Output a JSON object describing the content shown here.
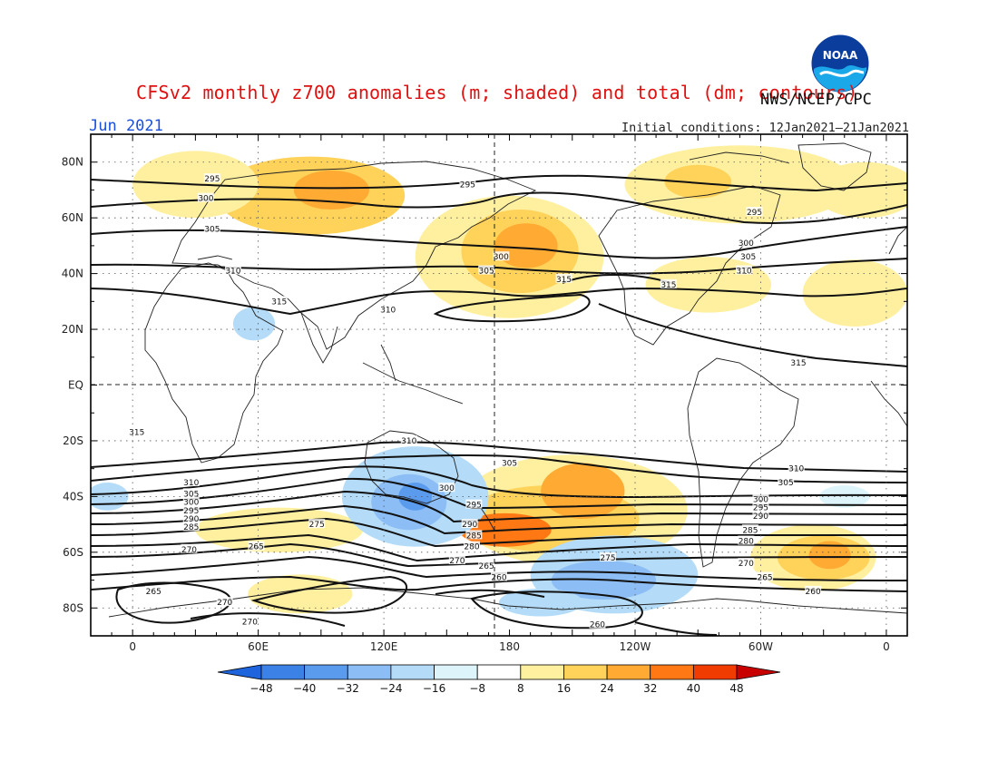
{
  "header": {
    "title": "CFSv2 monthly z700 anomalies (m; shaded) and total (dm; contours)",
    "organization": "NWS/NCEP/CPC",
    "period": "Jun 2021",
    "initial_conditions": "Initial conditions: 12Jan2021–21Jan2021"
  },
  "axes": {
    "lat_labels": [
      "80N",
      "60N",
      "40N",
      "20N",
      "EQ",
      "20S",
      "40S",
      "60S",
      "80S"
    ],
    "lat_values": [
      80,
      60,
      40,
      20,
      0,
      -20,
      -40,
      -60,
      -80
    ],
    "lon_labels": [
      "0",
      "60E",
      "120E",
      "180",
      "120W",
      "60W",
      "0"
    ],
    "lon_values": [
      0,
      60,
      120,
      180,
      240,
      300,
      360
    ]
  },
  "map_extent": {
    "lon_min": -20,
    "lon_max": 370,
    "lat_min": -90,
    "lat_max": 90
  },
  "colorbar": {
    "labels": [
      "-48",
      "-40",
      "-32",
      "-24",
      "-16",
      "-8",
      "8",
      "16",
      "24",
      "32",
      "40",
      "48"
    ],
    "colors": [
      "#1e64dc",
      "#3c82e6",
      "#5a9bee",
      "#8cbef5",
      "#b4dcf8",
      "#dcf4fa",
      "#ffffff",
      "#fff0a0",
      "#ffd25a",
      "#ffaa32",
      "#ff7814",
      "#f03c00",
      "#c80000"
    ]
  },
  "contour_labels": [
    {
      "text": "295",
      "lon": 38,
      "lat": 74
    },
    {
      "text": "300",
      "lon": 35,
      "lat": 67
    },
    {
      "text": "305",
      "lon": 38,
      "lat": 56
    },
    {
      "text": "310",
      "lon": 48,
      "lat": 41
    },
    {
      "text": "315",
      "lon": 70,
      "lat": 30
    },
    {
      "text": "310",
      "lon": 122,
      "lat": 27
    },
    {
      "text": "295",
      "lon": 160,
      "lat": 72
    },
    {
      "text": "300",
      "lon": 176,
      "lat": 46
    },
    {
      "text": "305",
      "lon": 169,
      "lat": 41
    },
    {
      "text": "315",
      "lon": 206,
      "lat": 38
    },
    {
      "text": "295",
      "lon": 297,
      "lat": 62
    },
    {
      "text": "300",
      "lon": 293,
      "lat": 51
    },
    {
      "text": "305",
      "lon": 294,
      "lat": 46
    },
    {
      "text": "310",
      "lon": 292,
      "lat": 41
    },
    {
      "text": "315",
      "lon": 256,
      "lat": 36
    },
    {
      "text": "315",
      "lon": 318,
      "lat": 8
    },
    {
      "text": "315",
      "lon": 2,
      "lat": -17
    },
    {
      "text": "310",
      "lon": 132,
      "lat": -20
    },
    {
      "text": "305",
      "lon": 180,
      "lat": -28
    },
    {
      "text": "310",
      "lon": 317,
      "lat": -30
    },
    {
      "text": "305",
      "lon": 312,
      "lat": -35
    },
    {
      "text": "300",
      "lon": 150,
      "lat": -37
    },
    {
      "text": "295",
      "lon": 163,
      "lat": -43
    },
    {
      "text": "290",
      "lon": 161,
      "lat": -50
    },
    {
      "text": "285",
      "lon": 163,
      "lat": -54
    },
    {
      "text": "280",
      "lon": 162,
      "lat": -58
    },
    {
      "text": "270",
      "lon": 155,
      "lat": -63
    },
    {
      "text": "265",
      "lon": 169,
      "lat": -65
    },
    {
      "text": "260",
      "lon": 175,
      "lat": -69
    },
    {
      "text": "275",
      "lon": 227,
      "lat": -62
    },
    {
      "text": "310",
      "lon": 28,
      "lat": -35
    },
    {
      "text": "305",
      "lon": 28,
      "lat": -39
    },
    {
      "text": "300",
      "lon": 28,
      "lat": -42
    },
    {
      "text": "295",
      "lon": 28,
      "lat": -45
    },
    {
      "text": "290",
      "lon": 28,
      "lat": -48
    },
    {
      "text": "285",
      "lon": 28,
      "lat": -51
    },
    {
      "text": "270",
      "lon": 27,
      "lat": -59
    },
    {
      "text": "265",
      "lon": 59,
      "lat": -58
    },
    {
      "text": "275",
      "lon": 88,
      "lat": -50
    },
    {
      "text": "265",
      "lon": 10,
      "lat": -74
    },
    {
      "text": "270",
      "lon": 44,
      "lat": -78
    },
    {
      "text": "270",
      "lon": 56,
      "lat": -85
    },
    {
      "text": "300",
      "lon": 300,
      "lat": -41
    },
    {
      "text": "295",
      "lon": 300,
      "lat": -44
    },
    {
      "text": "290",
      "lon": 300,
      "lat": -47
    },
    {
      "text": "285",
      "lon": 295,
      "lat": -52
    },
    {
      "text": "280",
      "lon": 293,
      "lat": -56
    },
    {
      "text": "270",
      "lon": 293,
      "lat": -64
    },
    {
      "text": "265",
      "lon": 302,
      "lat": -69
    },
    {
      "text": "260",
      "lon": 325,
      "lat": -74
    },
    {
      "text": "260",
      "lon": 222,
      "lat": -86
    }
  ],
  "anomaly_regions": [
    {
      "lon": 85,
      "lat": 68,
      "rx": 45,
      "ry": 14,
      "value": 24
    },
    {
      "lon": 95,
      "lat": 70,
      "rx": 18,
      "ry": 7,
      "value": 32
    },
    {
      "lon": 30,
      "lat": 72,
      "rx": 30,
      "ry": 12,
      "value": 16
    },
    {
      "lon": 180,
      "lat": 46,
      "rx": 45,
      "ry": 22,
      "value": 16
    },
    {
      "lon": 185,
      "lat": 48,
      "rx": 28,
      "ry": 15,
      "value": 24
    },
    {
      "lon": 188,
      "lat": 50,
      "rx": 15,
      "ry": 8,
      "value": 32
    },
    {
      "lon": 290,
      "lat": 72,
      "rx": 55,
      "ry": 14,
      "value": 16
    },
    {
      "lon": 270,
      "lat": 73,
      "rx": 16,
      "ry": 6,
      "value": 24
    },
    {
      "lon": 350,
      "lat": 70,
      "rx": 25,
      "ry": 10,
      "value": 16
    },
    {
      "lon": 275,
      "lat": 36,
      "rx": 30,
      "ry": 10,
      "value": 16
    },
    {
      "lon": 345,
      "lat": 33,
      "rx": 25,
      "ry": 12,
      "value": 16
    },
    {
      "lon": 210,
      "lat": -45,
      "rx": 55,
      "ry": 20,
      "value": 16
    },
    {
      "lon": 200,
      "lat": -48,
      "rx": 42,
      "ry": 12,
      "value": 24
    },
    {
      "lon": 215,
      "lat": -38,
      "rx": 20,
      "ry": 10,
      "value": 32
    },
    {
      "lon": 178,
      "lat": -52,
      "rx": 22,
      "ry": 6,
      "value": 40
    },
    {
      "lon": 325,
      "lat": -62,
      "rx": 30,
      "ry": 12,
      "value": 16
    },
    {
      "lon": 330,
      "lat": -62,
      "rx": 22,
      "ry": 8,
      "value": 24
    },
    {
      "lon": 333,
      "lat": -61,
      "rx": 10,
      "ry": 5,
      "value": 32
    },
    {
      "lon": 70,
      "lat": -52,
      "rx": 40,
      "ry": 8,
      "value": 16
    },
    {
      "lon": 80,
      "lat": -75,
      "rx": 25,
      "ry": 7,
      "value": 16
    },
    {
      "lon": 135,
      "lat": -40,
      "rx": 35,
      "ry": 18,
      "value": -16
    },
    {
      "lon": 132,
      "lat": -42,
      "rx": 18,
      "ry": 10,
      "value": -24
    },
    {
      "lon": 135,
      "lat": -40,
      "rx": 8,
      "ry": 5,
      "value": -32
    },
    {
      "lon": 230,
      "lat": -68,
      "rx": 40,
      "ry": 14,
      "value": -16
    },
    {
      "lon": 225,
      "lat": -70,
      "rx": 25,
      "ry": 7,
      "value": -24
    },
    {
      "lon": 195,
      "lat": -78,
      "rx": 20,
      "ry": 5,
      "value": -16
    },
    {
      "lon": 58,
      "lat": 22,
      "rx": 10,
      "ry": 6,
      "value": -16
    },
    {
      "lon": -12,
      "lat": -40,
      "rx": 10,
      "ry": 5,
      "value": -16
    },
    {
      "lon": 340,
      "lat": -40,
      "rx": 12,
      "ry": 4,
      "value": -8
    }
  ]
}
